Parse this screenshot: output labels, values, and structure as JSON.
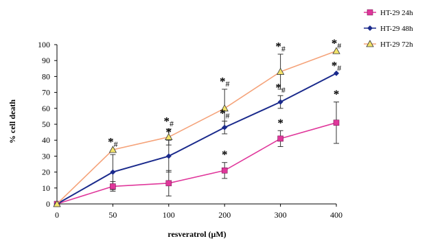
{
  "chart_data": {
    "type": "line",
    "xlabel": "resveratrol (μM)",
    "ylabel": "% cell death",
    "x_categories": [
      "0",
      "50",
      "100",
      "200",
      "300",
      "400"
    ],
    "y_ticks": [
      "0",
      "10",
      "20",
      "30",
      "40",
      "50",
      "60",
      "70",
      "80",
      "90",
      "100"
    ],
    "ylim": [
      0,
      100
    ],
    "grid": false,
    "legend_position": "top-right",
    "series": [
      {
        "name": "HT-29 24h",
        "color": "#e0379b",
        "marker": "square",
        "values": [
          0,
          11,
          13,
          21,
          41,
          51
        ],
        "error": [
          0,
          3,
          8,
          5,
          5,
          13
        ],
        "annotations": [
          "",
          "",
          "",
          "*",
          "*",
          "*"
        ]
      },
      {
        "name": "HT-29 48h",
        "color": "#1a2a8c",
        "marker": "diamond",
        "values": [
          0,
          20,
          30,
          48,
          64,
          82
        ],
        "error": [
          0,
          11,
          10,
          4,
          4,
          0
        ],
        "annotations": [
          "",
          "",
          "*",
          "*#",
          "*#",
          "*#"
        ]
      },
      {
        "name": "HT-29 72h",
        "color": "#f5a37a",
        "marker": "triangle",
        "values": [
          0,
          34,
          42,
          60,
          83,
          96
        ],
        "error": [
          0,
          0,
          5,
          12,
          11,
          0
        ],
        "annotations": [
          "",
          "*#",
          "*#",
          "*#",
          "*#",
          "*#"
        ]
      }
    ]
  }
}
